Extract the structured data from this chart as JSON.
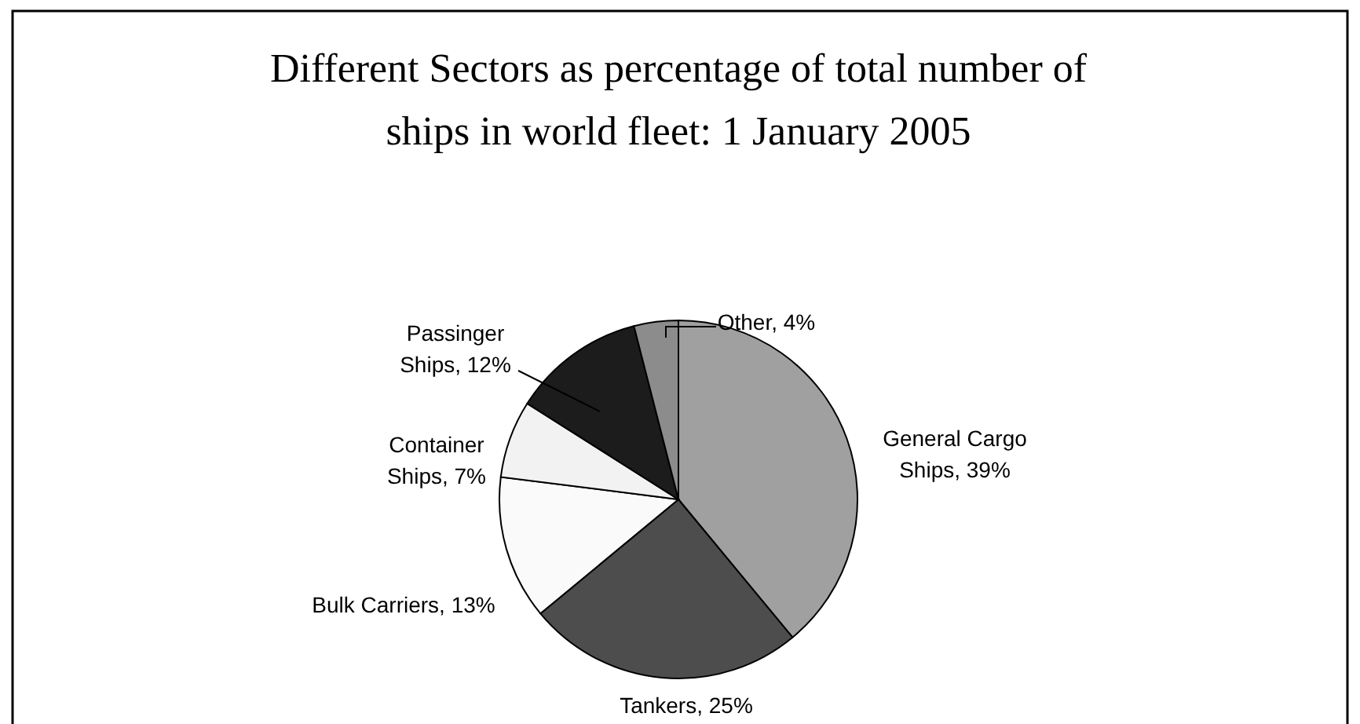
{
  "chart_data": {
    "type": "pie",
    "title": "Different Sectors as percentage of total number of ships in world fleet: 1 January 2005",
    "categories": [
      "General Cargo Ships",
      "Tankers",
      "Bulk Carriers",
      "Container Ships",
      "Passinger Ships",
      "Other"
    ],
    "values": [
      39,
      25,
      13,
      7,
      12,
      4
    ],
    "value_labels": [
      "39%",
      "25%",
      "13%",
      "7%",
      "12%",
      "4%"
    ],
    "colors": [
      "#a0a0a0",
      "#4d4d4d",
      "#fafafa",
      "#f2f2f2",
      "#1c1c1c",
      "#8c8c8c"
    ]
  }
}
